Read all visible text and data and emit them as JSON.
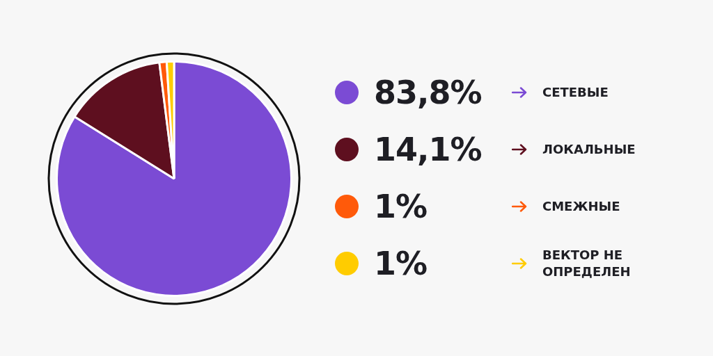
{
  "chart_data": {
    "type": "pie",
    "categories": [
      "СЕТЕВЫЕ",
      "ЛОКАЛЬНЫЕ",
      "СМЕЖНЫЕ",
      "ВЕКТОР НЕ ОПРЕДЕЛЕН"
    ],
    "values": [
      83.8,
      14.1,
      1,
      1
    ],
    "colors": [
      "#7b4bd4",
      "#5e0f1f",
      "#ff5a0a",
      "#ffcc00"
    ],
    "value_labels": [
      "83,8%",
      "14,1%",
      "1%",
      "1%"
    ],
    "legend": "right"
  }
}
